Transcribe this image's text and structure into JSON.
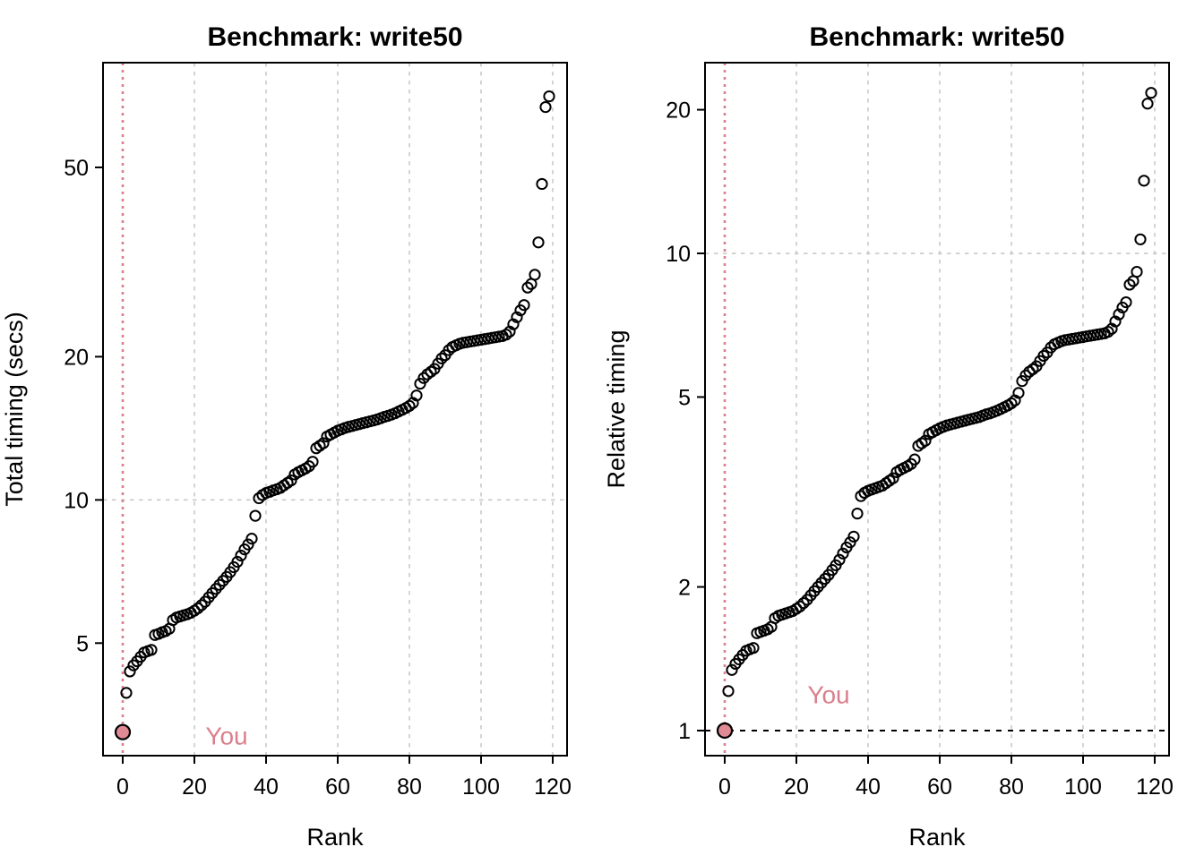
{
  "figure": {
    "background": "#ffffff",
    "accent_pink": "#D9808C",
    "highlight_fill": "#E08A96",
    "grid_color": "#C9C9C9",
    "point_stroke": "#000000",
    "ref_line_color": "#000000"
  },
  "chart_data": [
    {
      "type": "scatter",
      "title": "Benchmark: write50",
      "xlabel": "Rank",
      "ylabel": "Total timing (secs)",
      "y_scale": "log",
      "grid": "partial",
      "legend": "none",
      "xlim": [
        -5.5,
        124
      ],
      "ylim": [
        2.9,
        83
      ],
      "x_ticks": [
        0,
        20,
        40,
        60,
        80,
        100,
        120
      ],
      "y_ticks": [
        5,
        10,
        20,
        50
      ],
      "v_gridlines": [
        20,
        40,
        60,
        80,
        100,
        120
      ],
      "h_gridlines": [
        10
      ],
      "you_line_x": 0,
      "highlight": {
        "rank": 0,
        "value": 3.25
      },
      "annotation": {
        "label": "You",
        "x": 29,
        "y": 3.06
      },
      "x_start_rank": 0,
      "values": [
        3.25,
        3.93,
        4.36,
        4.49,
        4.58,
        4.68,
        4.78,
        4.81,
        4.84,
        5.2,
        5.23,
        5.27,
        5.3,
        5.36,
        5.59,
        5.66,
        5.69,
        5.72,
        5.75,
        5.79,
        5.85,
        5.92,
        6.01,
        6.11,
        6.24,
        6.37,
        6.5,
        6.63,
        6.76,
        6.89,
        7.05,
        7.22,
        7.41,
        7.64,
        7.87,
        8.06,
        8.29,
        9.26,
        10.08,
        10.24,
        10.34,
        10.4,
        10.47,
        10.53,
        10.6,
        10.73,
        10.86,
        10.99,
        11.31,
        11.44,
        11.54,
        11.64,
        11.77,
        12.03,
        12.84,
        13.0,
        13.16,
        13.59,
        13.72,
        13.85,
        13.98,
        14.07,
        14.17,
        14.24,
        14.3,
        14.37,
        14.43,
        14.5,
        14.56,
        14.63,
        14.69,
        14.76,
        14.85,
        14.95,
        15.02,
        15.11,
        15.21,
        15.34,
        15.47,
        15.6,
        15.76,
        15.99,
        16.58,
        17.55,
        18.04,
        18.36,
        18.59,
        18.85,
        19.34,
        19.83,
        20.15,
        20.64,
        20.96,
        21.13,
        21.29,
        21.39,
        21.45,
        21.52,
        21.58,
        21.65,
        21.71,
        21.78,
        21.84,
        21.91,
        21.97,
        22.04,
        22.1,
        22.26,
        22.59,
        23.4,
        24.21,
        25.03,
        25.68,
        27.95,
        28.44,
        29.74,
        34.78,
        46.15,
        66.95,
        70.53
      ]
    },
    {
      "type": "scatter",
      "title": "Benchmark: write50",
      "xlabel": "Rank",
      "ylabel": "Relative timing",
      "y_scale": "log",
      "grid": "partial",
      "legend": "none",
      "xlim": [
        -5.5,
        124
      ],
      "ylim": [
        0.886,
        25.1
      ],
      "x_ticks": [
        0,
        20,
        40,
        60,
        80,
        100,
        120
      ],
      "y_ticks": [
        1,
        2,
        5,
        10,
        20
      ],
      "v_gridlines": [
        20,
        40,
        60,
        80,
        100,
        120
      ],
      "h_gridlines": [
        10
      ],
      "you_line_x": 0,
      "reference_line_y": 1,
      "highlight": {
        "rank": 0,
        "value": 1.0
      },
      "annotation": {
        "label": "You",
        "x": 29,
        "y": 1.14
      },
      "x_start_rank": 0,
      "values": [
        1.0,
        1.21,
        1.34,
        1.38,
        1.41,
        1.44,
        1.47,
        1.48,
        1.49,
        1.6,
        1.61,
        1.62,
        1.63,
        1.65,
        1.72,
        1.74,
        1.75,
        1.76,
        1.77,
        1.78,
        1.8,
        1.82,
        1.85,
        1.88,
        1.92,
        1.96,
        2.0,
        2.04,
        2.08,
        2.12,
        2.17,
        2.22,
        2.28,
        2.35,
        2.42,
        2.48,
        2.55,
        2.85,
        3.1,
        3.15,
        3.18,
        3.2,
        3.22,
        3.24,
        3.26,
        3.3,
        3.34,
        3.38,
        3.48,
        3.52,
        3.55,
        3.58,
        3.62,
        3.7,
        3.95,
        4.0,
        4.05,
        4.18,
        4.22,
        4.26,
        4.3,
        4.33,
        4.36,
        4.38,
        4.4,
        4.42,
        4.44,
        4.46,
        4.48,
        4.5,
        4.52,
        4.54,
        4.57,
        4.6,
        4.62,
        4.65,
        4.68,
        4.72,
        4.76,
        4.8,
        4.85,
        4.92,
        5.1,
        5.4,
        5.55,
        5.65,
        5.72,
        5.8,
        5.95,
        6.1,
        6.2,
        6.35,
        6.45,
        6.5,
        6.55,
        6.58,
        6.6,
        6.62,
        6.64,
        6.66,
        6.68,
        6.7,
        6.72,
        6.74,
        6.76,
        6.78,
        6.8,
        6.85,
        6.95,
        7.2,
        7.45,
        7.7,
        7.9,
        8.6,
        8.75,
        9.15,
        10.7,
        14.2,
        20.6,
        21.7
      ]
    }
  ]
}
